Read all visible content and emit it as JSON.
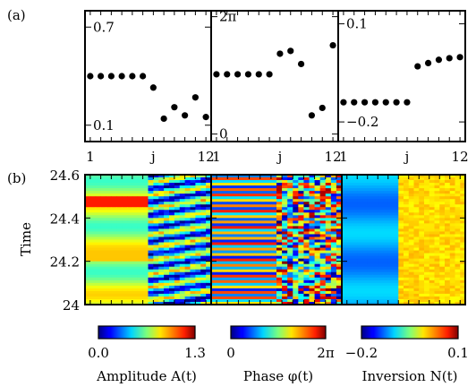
{
  "figure": {
    "panel_a_label": "(a)",
    "panel_b_label": "(b)"
  },
  "chart_data": [
    {
      "type": "scatter",
      "panel": "a",
      "subplot": "amplitude",
      "x": [
        1,
        2,
        3,
        4,
        5,
        6,
        7,
        8,
        9,
        10,
        11,
        12
      ],
      "y": [
        0.4,
        0.4,
        0.4,
        0.4,
        0.4,
        0.4,
        0.33,
        0.14,
        0.21,
        0.16,
        0.27,
        0.15
      ],
      "ylim": [
        0.0,
        0.8
      ],
      "yticks": [
        0.1,
        0.7
      ],
      "ytick_labels": [
        "0.1",
        "0.7"
      ],
      "xlim": [
        0.5,
        12.5
      ],
      "xticks": [
        1,
        7,
        12
      ],
      "xtick_labels": [
        "1",
        "j",
        "12"
      ]
    },
    {
      "type": "scatter",
      "panel": "a",
      "subplot": "phase",
      "x": [
        1,
        2,
        3,
        4,
        5,
        6,
        7,
        8,
        9,
        10,
        11,
        12
      ],
      "y": [
        3.2,
        3.2,
        3.2,
        3.2,
        3.2,
        3.2,
        4.3,
        4.45,
        3.75,
        1.0,
        1.4,
        4.75
      ],
      "ylim": [
        -0.4,
        6.6
      ],
      "yticks": [
        0,
        6.2832
      ],
      "ytick_labels": [
        "0",
        "2π"
      ],
      "xlim": [
        0.5,
        12.5
      ],
      "xticks": [
        1,
        7,
        12
      ],
      "xtick_labels": [
        "1",
        "j",
        "12"
      ]
    },
    {
      "type": "scatter",
      "panel": "a",
      "subplot": "inversion",
      "x": [
        1,
        2,
        3,
        4,
        5,
        6,
        7,
        8,
        9,
        10,
        11,
        12
      ],
      "y": [
        -0.14,
        -0.14,
        -0.14,
        -0.14,
        -0.14,
        -0.14,
        -0.14,
        -0.03,
        -0.02,
        -0.01,
        -0.005,
        -0.002
      ],
      "ylim": [
        -0.26,
        0.14
      ],
      "yticks": [
        -0.2,
        0.1
      ],
      "ytick_labels": [
        "−0.2",
        "0.1"
      ],
      "xlim": [
        0.5,
        12.5
      ],
      "xticks": [
        1,
        7,
        12
      ],
      "xtick_labels": [
        "1",
        "j",
        "12"
      ]
    },
    {
      "type": "heatmap",
      "panel": "b",
      "ylabel": "Time",
      "ylim": [
        24.0,
        24.6
      ],
      "yticks": [
        24.0,
        24.2,
        24.4,
        24.6
      ],
      "ytick_labels": [
        "24",
        "24.2",
        "24.4",
        "24.6"
      ],
      "subplots": [
        {
          "quantity": "amplitude",
          "colorbar_label": "Amplitude A(t)",
          "colorbar_min_label": "0.0",
          "colorbar_max_label": "1.3",
          "range": [
            0.0,
            1.3
          ],
          "left_region": "smooth horizontal bands (green/yellow, red band near t = 24.45)",
          "right_region": "striped blue/cyan/yellow pattern"
        },
        {
          "quantity": "phase",
          "colorbar_label": "Phase φ(t)",
          "colorbar_min_label": "0",
          "colorbar_max_label": "2π",
          "range": [
            0.0,
            6.2832
          ],
          "left_region": "fine horizontal stripes (oscillating phase)",
          "right_region": "irregular multicolor pattern"
        },
        {
          "quantity": "inversion",
          "colorbar_label": "Inversion N(t)",
          "colorbar_min_label": "−0.2",
          "colorbar_max_label": "0.1",
          "range": [
            -0.2,
            0.1
          ],
          "left_region": "blue/cyan horizontal bands",
          "right_region": "yellow/orange region"
        }
      ]
    }
  ]
}
